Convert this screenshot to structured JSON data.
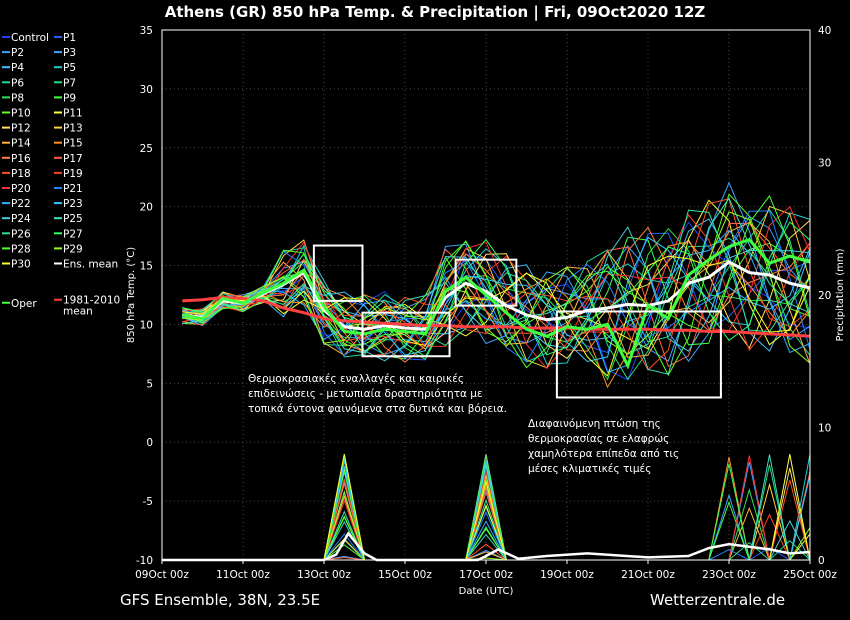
{
  "chart_data": {
    "type": "line",
    "title": "Athens  (GR)  850 hPa Temp. & Precipitation | Fri, 09Oct2020 12Z",
    "xlabel": "Date (UTC)",
    "ylabel": "850 hPa Temp. (°C)",
    "ylabel_right": "Precipitation (mm)",
    "xlim": [
      0,
      16
    ],
    "ylim": [
      -10,
      35
    ],
    "ylim_right": [
      0,
      40
    ],
    "x_ticks": [
      {
        "x": 0,
        "label": "09Oct 00z"
      },
      {
        "x": 2,
        "label": "11Oct 00z"
      },
      {
        "x": 4,
        "label": "13Oct 00z"
      },
      {
        "x": 6,
        "label": "15Oct 00z"
      },
      {
        "x": 8,
        "label": "17Oct 00z"
      },
      {
        "x": 10,
        "label": "19Oct 00z"
      },
      {
        "x": 12,
        "label": "21Oct 00z"
      },
      {
        "x": 14,
        "label": "23Oct 00z"
      },
      {
        "x": 16,
        "label": "25Oct 00z"
      }
    ],
    "y_ticks": [
      35,
      30,
      25,
      20,
      15,
      10,
      5,
      0,
      -5,
      -10
    ],
    "y_ticks_right": [
      40,
      30,
      20,
      10,
      0
    ],
    "x": [
      0.5,
      1.0,
      1.5,
      2.0,
      2.5,
      3.0,
      3.5,
      4.0,
      4.5,
      5.0,
      5.5,
      6.0,
      6.5,
      7.0,
      7.5,
      8.0,
      8.5,
      9.0,
      9.5,
      10.0,
      10.5,
      11.0,
      11.5,
      12.0,
      12.5,
      13.0,
      13.5,
      14.0,
      14.5,
      15.0,
      15.5,
      16.0
    ],
    "series": [
      {
        "name": "Ens. mean",
        "color": "#ffffff",
        "values": [
          10.8,
          10.6,
          12.0,
          11.8,
          12.6,
          13.4,
          14.4,
          11.2,
          9.8,
          9.6,
          9.9,
          9.7,
          9.6,
          12.3,
          13.5,
          12.8,
          11.6,
          10.8,
          10.4,
          10.6,
          11.2,
          11.4,
          11.7,
          11.6,
          12.0,
          13.5,
          14.0,
          15.3,
          14.4,
          14.2,
          13.5,
          13.1
        ]
      },
      {
        "name": "1981-2010 mean",
        "color": "#ff4040",
        "values": [
          12.0,
          12.1,
          12.3,
          12.2,
          12.0,
          11.4,
          11.0,
          10.5,
          10.3,
          10.2,
          10.1,
          10.0,
          9.9,
          9.9,
          9.8,
          9.8,
          9.8,
          9.7,
          9.7,
          9.7,
          9.6,
          9.6,
          9.6,
          9.6,
          9.5,
          9.5,
          9.4,
          9.4,
          9.3,
          9.2,
          9.1,
          9.0
        ]
      },
      {
        "name": "Oper",
        "color": "#40ff40",
        "values": [
          10.8,
          10.5,
          12.2,
          11.8,
          12.7,
          13.5,
          14.6,
          11.5,
          9.4,
          9.2,
          9.6,
          9.4,
          9.2,
          12.8,
          14.0,
          12.5,
          11.0,
          9.6,
          9.0,
          9.8,
          9.6,
          10.0,
          6.5,
          11.6,
          10.5,
          14.2,
          15.5,
          16.6,
          17.2,
          15.2,
          15.8,
          15.3
        ]
      }
    ],
    "precip_series": [
      {
        "name": "Ens. mean",
        "color": "#ffffff",
        "x": [
          0,
          4.0,
          4.3,
          4.6,
          5.0,
          5.3,
          7.8,
          8.0,
          8.3,
          8.8,
          9.5,
          10.5,
          12.0,
          13.0,
          13.5,
          14.0,
          14.5,
          15.0,
          15.5,
          16.0
        ],
        "values": [
          0,
          0,
          0.4,
          2.0,
          0.5,
          0,
          0,
          0.3,
          0.8,
          0.1,
          0.3,
          0.5,
          0.2,
          0.3,
          0.9,
          1.2,
          1.0,
          0.8,
          0.5,
          0.6
        ]
      }
    ],
    "members": [
      "Control",
      "P1",
      "P2",
      "P3",
      "P4",
      "P5",
      "P6",
      "P7",
      "P8",
      "P9",
      "P10",
      "P11",
      "P12",
      "P13",
      "P14",
      "P15",
      "P16",
      "P17",
      "P18",
      "P19",
      "P20",
      "P21",
      "P22",
      "P23",
      "P24",
      "P25",
      "P26",
      "P27",
      "P28",
      "P29",
      "P30"
    ],
    "member_colors": [
      "#2040ff",
      "#2060ff",
      "#3aa0ff",
      "#40a0ff",
      "#40c0ff",
      "#20d0d0",
      "#20d8a0",
      "#20e080",
      "#30e050",
      "#40ff40",
      "#60ff20",
      "#ffff40",
      "#ffe060",
      "#ffd040",
      "#ffb040",
      "#ff9020",
      "#ff8040",
      "#ff6040",
      "#ff5020",
      "#ff4020",
      "#ff3030",
      "#2080ff",
      "#30b0ff",
      "#30c8ff",
      "#40d0e0",
      "#40e0c0",
      "#30e090",
      "#30ff60",
      "#50ff30",
      "#90ff20",
      "#ffff20"
    ],
    "legend": [
      {
        "label": "Control",
        "color": "#2040ff"
      },
      {
        "label": "P1",
        "color": "#2060ff"
      },
      {
        "label": "P2",
        "color": "#3aa0ff"
      },
      {
        "label": "P3",
        "color": "#40a0ff"
      },
      {
        "label": "P4",
        "color": "#40c0ff"
      },
      {
        "label": "P5",
        "color": "#20d0d0"
      },
      {
        "label": "P6",
        "color": "#20d8a0"
      },
      {
        "label": "P7",
        "color": "#20e080"
      },
      {
        "label": "P8",
        "color": "#30e050"
      },
      {
        "label": "P9",
        "color": "#40ff40"
      },
      {
        "label": "P10",
        "color": "#60ff20"
      },
      {
        "label": "P11",
        "color": "#ffff40"
      },
      {
        "label": "P12",
        "color": "#ffe060"
      },
      {
        "label": "P13",
        "color": "#ffd040"
      },
      {
        "label": "P14",
        "color": "#ffb040"
      },
      {
        "label": "P15",
        "color": "#ff9020"
      },
      {
        "label": "P16",
        "color": "#ff8040"
      },
      {
        "label": "P17",
        "color": "#ff6040"
      },
      {
        "label": "P18",
        "color": "#ff5020"
      },
      {
        "label": "P19",
        "color": "#ff4020"
      },
      {
        "label": "P20",
        "color": "#ff3030"
      },
      {
        "label": "P21",
        "color": "#2080ff"
      },
      {
        "label": "P22",
        "color": "#30b0ff"
      },
      {
        "label": "P23",
        "color": "#30c8ff"
      },
      {
        "label": "P24",
        "color": "#40d0e0"
      },
      {
        "label": "P25",
        "color": "#40e0c0"
      },
      {
        "label": "P26",
        "color": "#30e090"
      },
      {
        "label": "P27",
        "color": "#30ff60"
      },
      {
        "label": "P28",
        "color": "#50ff30"
      },
      {
        "label": "P29",
        "color": "#90ff20"
      },
      {
        "label": "P30",
        "color": "#ffff20"
      },
      {
        "label": "Ens. mean",
        "color": "#ffffff"
      },
      {
        "label": "Oper",
        "color": "#40ff40"
      },
      {
        "label": "1981-2010 mean",
        "color": "#ff4040"
      }
    ],
    "highlight_boxes": [
      {
        "x0": 3.75,
        "x1": 4.95,
        "y0": 12.0,
        "y1": 16.7
      },
      {
        "x0": 4.95,
        "x1": 7.1,
        "y0": 7.3,
        "y1": 11.0
      },
      {
        "x0": 7.25,
        "x1": 8.75,
        "y0": 11.6,
        "y1": 15.5
      },
      {
        "x0": 9.75,
        "x1": 13.8,
        "y0": 3.8,
        "y1": 11.1
      }
    ],
    "annotations": [
      {
        "lines": [
          "Θερμοκρασιακές εναλλαγές και καιρικές",
          "επιδεινώσεις - μετωπιαία δραστηριότητα με",
          "τοπικά έντονα φαινόμενα στα δυτικά και βόρεια."
        ]
      },
      {
        "lines": [
          "Διαφαινόμενη πτώση της",
          "θερμοκρασίας σε ελαφρώς",
          "χαμηλότερα επίπεδα από τις",
          "μέσες κλιματικές τιμές"
        ]
      }
    ],
    "footer_left": "GFS Ensemble, 38N, 23.5E",
    "footer_right": "Wetterzentrale.de"
  }
}
